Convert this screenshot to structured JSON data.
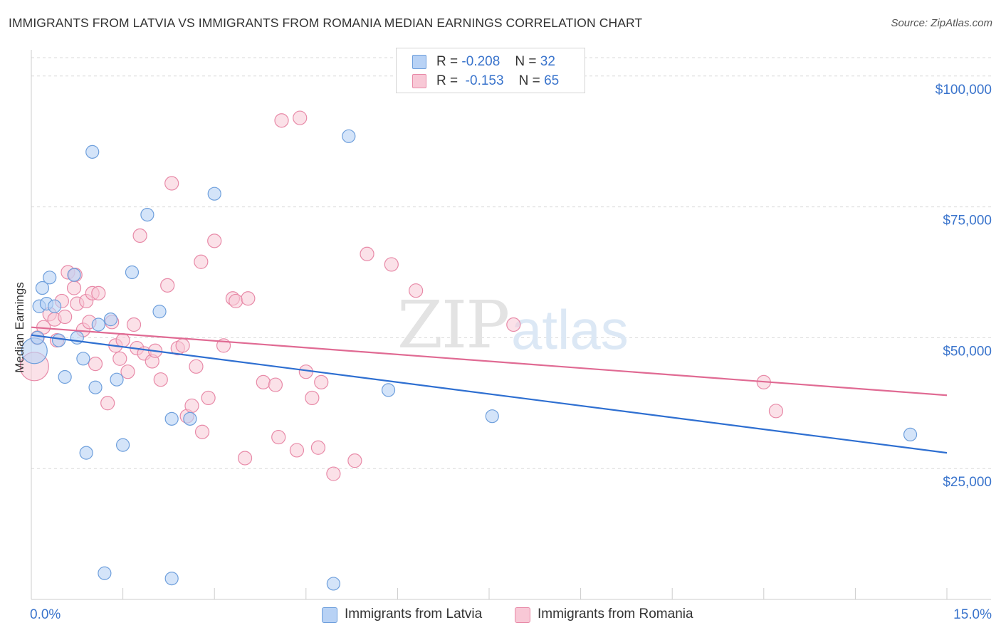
{
  "title": "IMMIGRANTS FROM LATVIA VS IMMIGRANTS FROM ROMANIA MEDIAN EARNINGS CORRELATION CHART",
  "source": "Source: ZipAtlas.com",
  "watermark": {
    "zip": "ZIP",
    "atlas": "atlas"
  },
  "legend": {
    "latvia": {
      "r_label": "R =",
      "r_value": "-0.208",
      "n_label": "N =",
      "n_value": "32"
    },
    "romania": {
      "r_label": "R =",
      "r_value": "-0.153",
      "n_label": "N =",
      "n_value": "65"
    }
  },
  "colors": {
    "latvia_fill": "#b8d2f5",
    "latvia_stroke": "#6e9fdc",
    "latvia_line": "#2e6fd1",
    "romania_fill": "#f8c8d6",
    "romania_stroke": "#e88aa8",
    "romania_line": "#e06a93",
    "axis_text": "#3a74cc",
    "grid": "#d9d9d9"
  },
  "chart_data": {
    "type": "scatter",
    "title": "IMMIGRANTS FROM LATVIA VS IMMIGRANTS FROM ROMANIA MEDIAN EARNINGS CORRELATION CHART",
    "xlabel": "",
    "ylabel": "Median Earnings",
    "xlim": [
      0,
      15
    ],
    "ylim": [
      0,
      105000
    ],
    "x_tick_labels": [
      "0.0%",
      "15.0%"
    ],
    "y_ticks": [
      25000,
      50000,
      75000,
      100000
    ],
    "y_tick_labels": [
      "$25,000",
      "$50,000",
      "$75,000",
      "$100,000"
    ],
    "series": [
      {
        "name": "Immigrants from Latvia",
        "points": [
          [
            0.05,
            47500
          ],
          [
            0.1,
            50000
          ],
          [
            0.13,
            56000
          ],
          [
            0.18,
            59500
          ],
          [
            0.25,
            56500
          ],
          [
            0.3,
            61500
          ],
          [
            0.38,
            56000
          ],
          [
            0.45,
            49500
          ],
          [
            0.55,
            42500
          ],
          [
            0.7,
            62000
          ],
          [
            0.75,
            50000
          ],
          [
            0.85,
            46000
          ],
          [
            0.9,
            28000
          ],
          [
            1.0,
            85500
          ],
          [
            1.05,
            40500
          ],
          [
            1.1,
            52500
          ],
          [
            1.2,
            5000
          ],
          [
            1.3,
            53500
          ],
          [
            1.4,
            42000
          ],
          [
            1.5,
            29500
          ],
          [
            1.65,
            62500
          ],
          [
            1.9,
            73500
          ],
          [
            2.1,
            55000
          ],
          [
            2.3,
            4000
          ],
          [
            2.3,
            34500
          ],
          [
            2.6,
            34500
          ],
          [
            3.0,
            77500
          ],
          [
            4.95,
            3000
          ],
          [
            5.2,
            88500
          ],
          [
            5.85,
            40000
          ],
          [
            7.55,
            35000
          ],
          [
            14.4,
            31500
          ]
        ]
      },
      {
        "name": "Immigrants from Romania",
        "points": [
          [
            0.05,
            44500
          ],
          [
            0.1,
            50000
          ],
          [
            0.2,
            52000
          ],
          [
            0.3,
            54500
          ],
          [
            0.38,
            53500
          ],
          [
            0.42,
            49500
          ],
          [
            0.5,
            57000
          ],
          [
            0.55,
            54000
          ],
          [
            0.6,
            62500
          ],
          [
            0.7,
            59500
          ],
          [
            0.72,
            62000
          ],
          [
            0.75,
            56500
          ],
          [
            0.85,
            51500
          ],
          [
            0.9,
            57000
          ],
          [
            0.95,
            53000
          ],
          [
            1.0,
            58500
          ],
          [
            1.05,
            45000
          ],
          [
            1.1,
            58500
          ],
          [
            1.25,
            37500
          ],
          [
            1.32,
            53000
          ],
          [
            1.38,
            48500
          ],
          [
            1.45,
            46000
          ],
          [
            1.5,
            49500
          ],
          [
            1.58,
            43500
          ],
          [
            1.68,
            52500
          ],
          [
            1.73,
            48000
          ],
          [
            1.78,
            69500
          ],
          [
            1.85,
            47000
          ],
          [
            1.98,
            45500
          ],
          [
            2.03,
            47500
          ],
          [
            2.12,
            42000
          ],
          [
            2.23,
            60000
          ],
          [
            2.3,
            79500
          ],
          [
            2.4,
            48000
          ],
          [
            2.48,
            48500
          ],
          [
            2.55,
            35000
          ],
          [
            2.63,
            37000
          ],
          [
            2.7,
            44500
          ],
          [
            2.78,
            64500
          ],
          [
            2.9,
            38500
          ],
          [
            3.0,
            68500
          ],
          [
            3.15,
            48500
          ],
          [
            3.3,
            57500
          ],
          [
            3.35,
            57000
          ],
          [
            3.55,
            57500
          ],
          [
            3.8,
            41500
          ],
          [
            4.0,
            41000
          ],
          [
            4.05,
            31000
          ],
          [
            4.1,
            91500
          ],
          [
            4.35,
            28500
          ],
          [
            4.5,
            43500
          ],
          [
            4.6,
            38500
          ],
          [
            4.7,
            29000
          ],
          [
            4.75,
            41500
          ],
          [
            4.95,
            24000
          ],
          [
            5.3,
            26500
          ],
          [
            5.5,
            66000
          ],
          [
            5.9,
            64000
          ],
          [
            6.3,
            59000
          ],
          [
            7.9,
            52500
          ],
          [
            12.0,
            41500
          ],
          [
            12.2,
            36000
          ],
          [
            2.8,
            32000
          ],
          [
            4.4,
            92000
          ],
          [
            3.5,
            27000
          ]
        ]
      }
    ],
    "trend_lines": [
      {
        "name": "Immigrants from Latvia",
        "start": [
          0,
          50500
        ],
        "end": [
          15,
          28000
        ]
      },
      {
        "name": "Immigrants from Romania",
        "start": [
          0,
          52000
        ],
        "end": [
          15,
          39000
        ]
      }
    ],
    "legend": [
      "Immigrants from Latvia",
      "Immigrants from Romania"
    ]
  }
}
